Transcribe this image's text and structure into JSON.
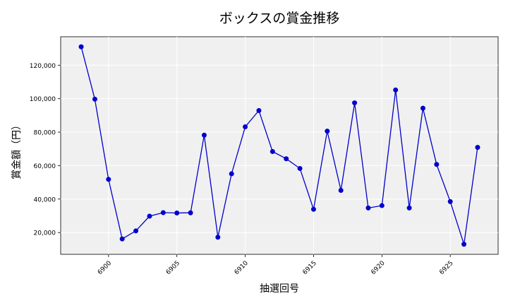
{
  "chart_data": {
    "type": "line",
    "title": "ボックスの賞金推移",
    "xlabel": "抽選回号",
    "ylabel": "賞金額（円）",
    "xlim": [
      6896.5,
      6928.5
    ],
    "ylim": [
      7000,
      137000
    ],
    "xticks": [
      6900,
      6905,
      6910,
      6915,
      6920,
      6925
    ],
    "xtick_labels": [
      "6900",
      "6905",
      "6910",
      "6915",
      "6920",
      "6925"
    ],
    "yticks": [
      20000,
      40000,
      60000,
      80000,
      100000,
      120000
    ],
    "ytick_labels": [
      "20,000",
      "40,000",
      "60,000",
      "80,000",
      "100,000",
      "120,000"
    ],
    "grid": true,
    "series": [
      {
        "color": "#0000cc",
        "x": [
          6898,
          6899,
          6900,
          6901,
          6902,
          6903,
          6904,
          6905,
          6906,
          6907,
          6908,
          6909,
          6910,
          6911,
          6912,
          6913,
          6914,
          6915,
          6916,
          6917,
          6918,
          6919,
          6920,
          6921,
          6922,
          6923,
          6924,
          6925,
          6926,
          6927
        ],
        "y": [
          131000,
          99700,
          51800,
          16200,
          21000,
          29800,
          31900,
          31700,
          31800,
          78200,
          17200,
          55100,
          83200,
          92900,
          68400,
          64100,
          58300,
          33900,
          80600,
          45200,
          97500,
          34700,
          36100,
          105200,
          34700,
          94300,
          60700,
          38500,
          13000,
          70900
        ]
      }
    ]
  }
}
